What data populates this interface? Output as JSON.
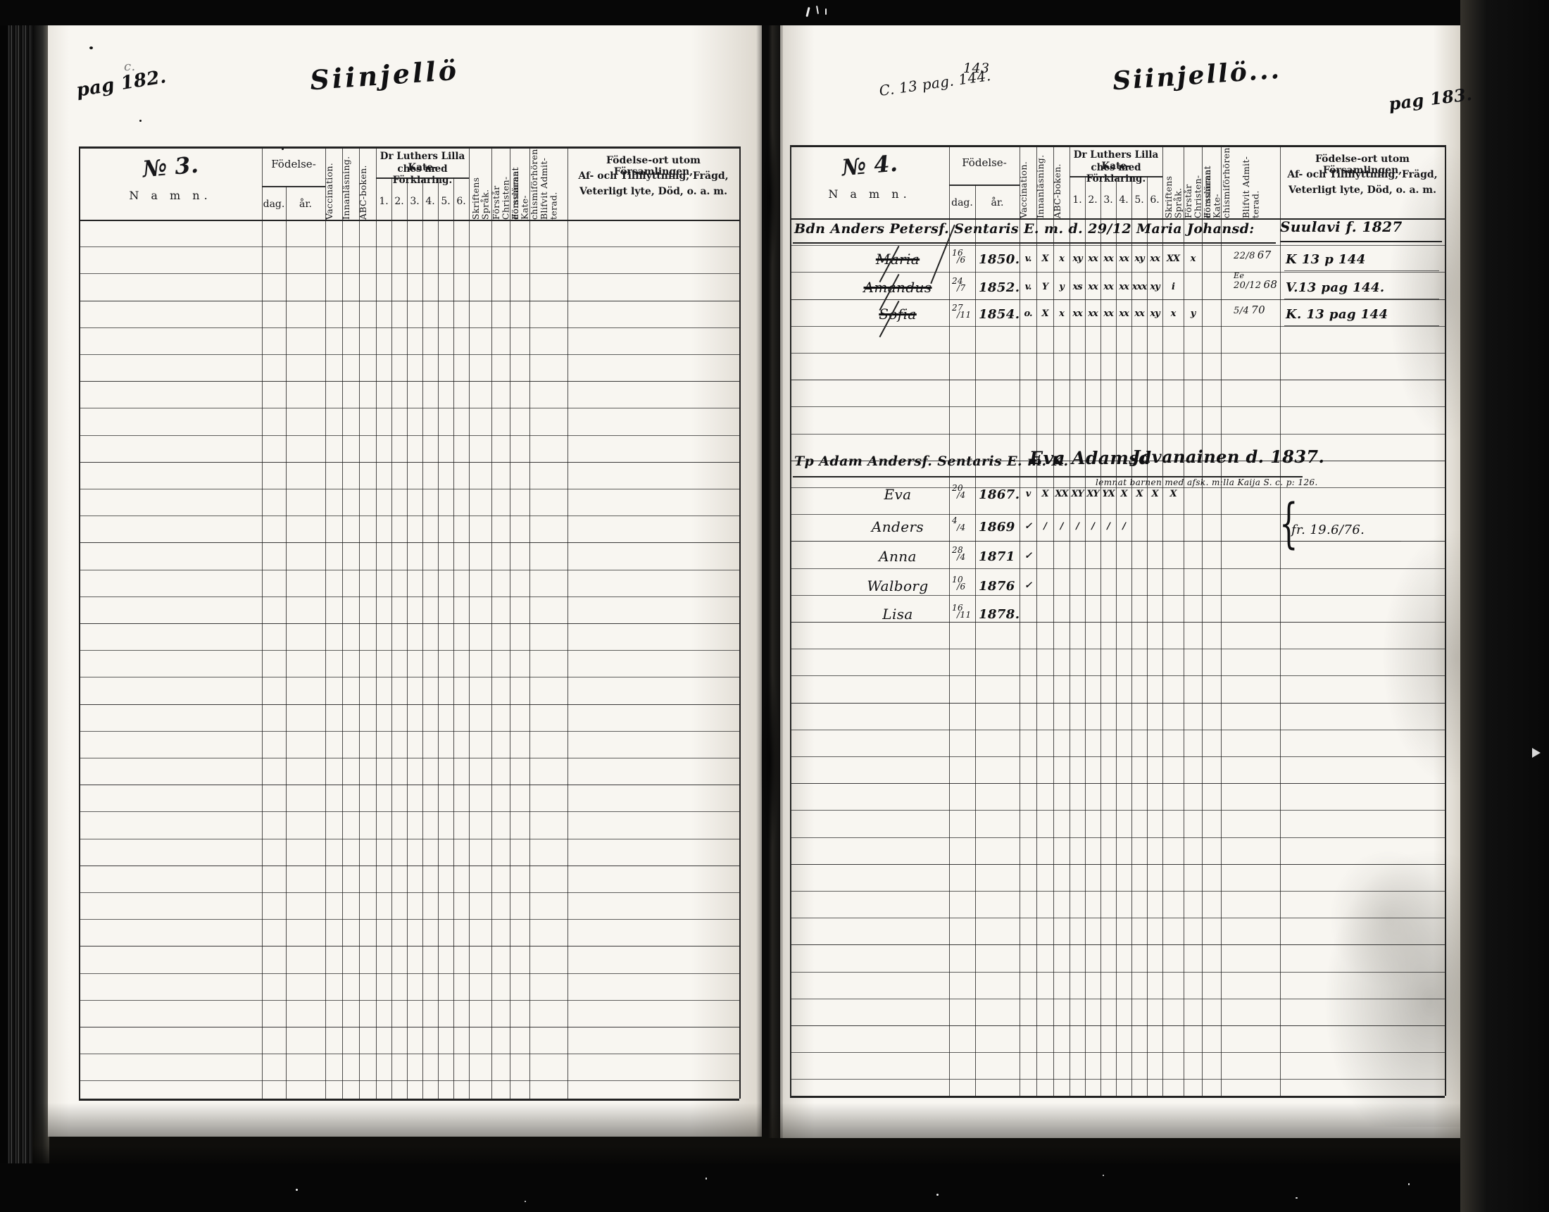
{
  "document": {
    "kind": "Scanned church examination register, two-page spread",
    "language": "Swedish"
  },
  "columns": {
    "namn": "N a m n.",
    "fodelse": "Födelse-",
    "dag": "dag.",
    "ar": "år.",
    "vaccination": "Vaccination.",
    "innanlasning": "Innanläsning.",
    "abc_boken": "ABC-boken.",
    "kateches_line1": "Dr Luthers Lilla Kate-",
    "kateches_line2": "ches med Förklaring.",
    "kateches_sub": [
      "1.",
      "2.",
      "3.",
      "4.",
      "5.",
      "6."
    ],
    "skriftens_sprak": "Skriftens Språk.",
    "forstar": "Förstår Christen- domsläran.",
    "forsummat": "Försummat Kate- chismiförhören.",
    "blifvit": "Blifvit Admit- terad.",
    "ort_line1": "Födelse-ort utom Församlingen,",
    "ort_line2": "Af- och Tillflyttning, Frägd,",
    "ort_line3": "Veterligt lyte, Död,  o. a. m."
  },
  "left_page": {
    "page_label": "pag 182.",
    "corner_mark": "c.",
    "title_script": "Siinjellö",
    "number_label": "№ 3."
  },
  "right_page": {
    "top_number": "143",
    "top_ref": "C. 13 pag. 144.",
    "title_script": "Siinjellö...",
    "page_label": "pag 183.",
    "number_label": "№ 4.",
    "families": [
      {
        "head_line": "Bdn Anders Petersf. Sentaris E. m. d. 29/12 Maria Johansd:",
        "head_tail": "Suulavi f. 1827",
        "members": [
          {
            "name": "Maria",
            "struck": true,
            "birth_day": "16",
            "birth_month": "6",
            "birth_year": "1850.",
            "marks": [
              "v.",
              "X",
              "x",
              "xy",
              "xx",
              "xx",
              "xx",
              "xy",
              "xx",
              "XX",
              "x"
            ],
            "admit_top": "22",
            "admit_bot": "8",
            "admit_year": "67",
            "note": "K 13 p 144"
          },
          {
            "name": "Amandus",
            "struck": true,
            "birth_day": "24",
            "birth_month": "7",
            "birth_year": "1852.",
            "marks": [
              "v.",
              "Y",
              "y",
              "xs",
              "xx",
              "xx",
              "xx",
              "xxx",
              "xy",
              "i",
              ""
            ],
            "admit_pre": "Ee",
            "admit_top": "20",
            "admit_bot": "12",
            "admit_year": "68",
            "note": "V.13 pag 144."
          },
          {
            "name": "Sofia",
            "struck": true,
            "birth_day": "27",
            "birth_month": "11",
            "birth_year": "1854.",
            "marks": [
              "o.",
              "X",
              "x",
              "xx",
              "xx",
              "xx",
              "xx",
              "xx",
              "xy",
              "x",
              "y"
            ],
            "admit_top": "5",
            "admit_bot": "4",
            "admit_year": "70",
            "note": "K. 13 pag 144"
          }
        ]
      },
      {
        "head_line": "Tp Adam Andersf. Sentaris E. m. K.",
        "head_name": "Eva Adamsd",
        "head_tail": "Javanainen d. 1837.",
        "head_subnote": "lemnat barnen med afsk. m:lla Kaija S. c. p: 126.",
        "brace_note": "fr. 19.6/76.",
        "members": [
          {
            "name": "Eva",
            "birth_day": "20",
            "birth_month": "4",
            "birth_year": "1867.",
            "marks": [
              "v",
              "X",
              "XX",
              "XY",
              "XY",
              "YX",
              "X",
              "X",
              "X",
              "X",
              ""
            ]
          },
          {
            "name": "Anders",
            "birth_day": "4",
            "birth_month": "4",
            "birth_year": "1869",
            "marks": [
              "✓",
              "/",
              "/",
              "/",
              "/",
              "/",
              "/",
              "",
              "",
              "",
              ""
            ]
          },
          {
            "name": "Anna",
            "birth_day": "28",
            "birth_month": "4",
            "birth_year": "1871",
            "marks": [
              "✓",
              "",
              "",
              "",
              "",
              "",
              "",
              "",
              "",
              "",
              ""
            ]
          },
          {
            "name": "Walborg",
            "birth_day": "10",
            "birth_month": "6",
            "birth_year": "1876",
            "marks": [
              "✓",
              "",
              "",
              "",
              "",
              "",
              "",
              "",
              "",
              "",
              ""
            ]
          },
          {
            "name": "Lisa",
            "birth_day": "16",
            "birth_month": "11",
            "birth_year": "1878.",
            "marks": []
          }
        ]
      }
    ]
  }
}
